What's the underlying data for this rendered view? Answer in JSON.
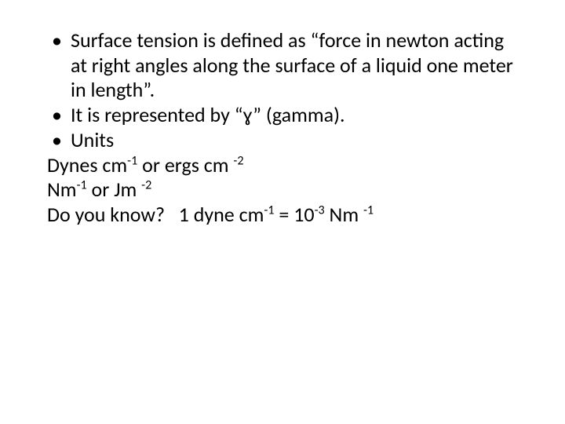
{
  "slide": {
    "background_color": "#ffffff",
    "text_color": "#000000",
    "font_family": "Calibri",
    "font_size_pt": 26,
    "line_height": 1.22,
    "bullets": [
      "Surface tension is defined as “force in newton acting at right angles along the surface of a liquid one meter in length”.",
      "It is represented by “ɣ” (gamma).",
      "Units"
    ],
    "lines": {
      "dynes_prefix": "Dynes cm",
      "dynes_sup1": "-1",
      "dynes_mid": " or ergs cm ",
      "dynes_sup2": "-2",
      "nm_prefix": "Nm",
      "nm_sup1": "-1",
      "nm_mid": " or Jm ",
      "nm_sup2": "-2",
      "conv_prefix": "Do you know?   1 dyne cm",
      "conv_sup1": "-1",
      "conv_mid": " = 10",
      "conv_sup2": "-3",
      "conv_mid2": " Nm ",
      "conv_sup3": "-1"
    }
  }
}
